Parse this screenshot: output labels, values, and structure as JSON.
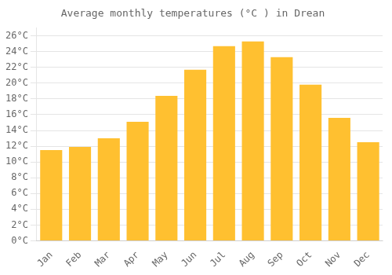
{
  "chart_data": {
    "type": "bar",
    "title": "Average monthly temperatures (°C ) in Drean",
    "categories": [
      "Jan",
      "Feb",
      "Mar",
      "Apr",
      "May",
      "Jun",
      "Jul",
      "Aug",
      "Sep",
      "Oct",
      "Nov",
      "Dec"
    ],
    "values": [
      11.5,
      11.9,
      13.0,
      15.1,
      18.4,
      21.7,
      24.7,
      25.3,
      23.3,
      19.8,
      15.6,
      12.5
    ],
    "color": "#FFC030",
    "ylim": [
      0,
      27
    ],
    "yticks": [
      {
        "value": 0,
        "label": "0°C"
      },
      {
        "value": 2,
        "label": "2°C"
      },
      {
        "value": 4,
        "label": "4°C"
      },
      {
        "value": 6,
        "label": "6°C"
      },
      {
        "value": 8,
        "label": "8°C"
      },
      {
        "value": 10,
        "label": "10°C"
      },
      {
        "value": 12,
        "label": "12°C"
      },
      {
        "value": 14,
        "label": "14°C"
      },
      {
        "value": 16,
        "label": "16°C"
      },
      {
        "value": 18,
        "label": "18°C"
      },
      {
        "value": 20,
        "label": "20°C"
      },
      {
        "value": 22,
        "label": "22°C"
      },
      {
        "value": 24,
        "label": "24°C"
      },
      {
        "value": 26,
        "label": "26°C"
      }
    ],
    "grid": true
  }
}
